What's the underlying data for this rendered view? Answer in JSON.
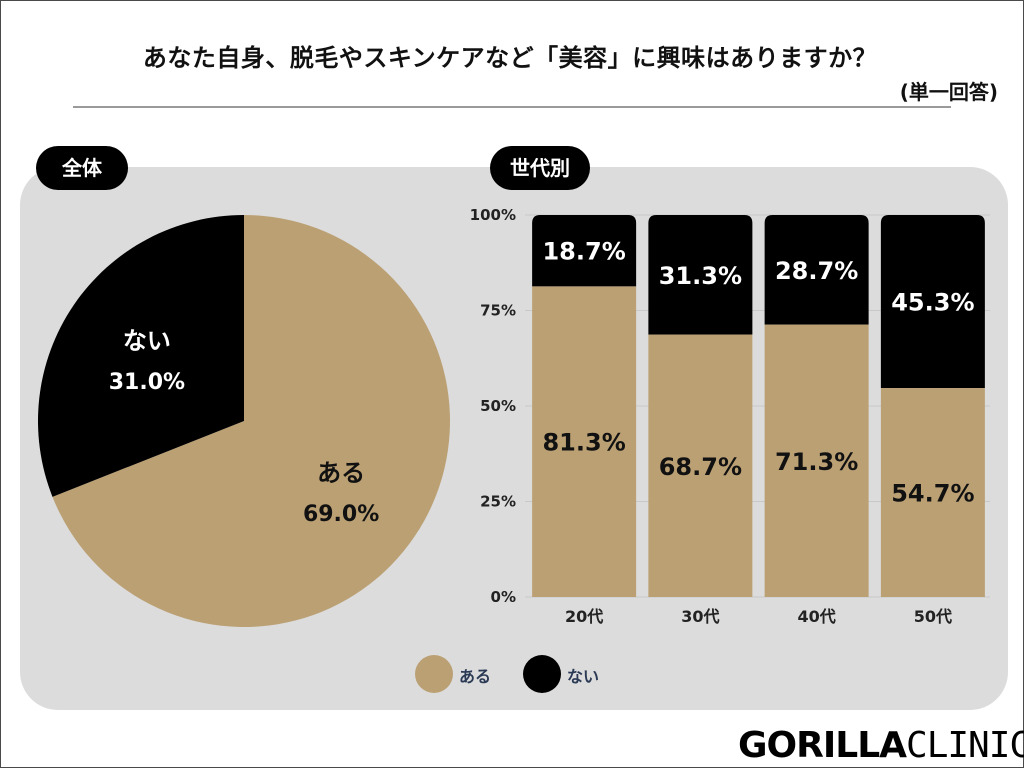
{
  "header": {
    "title": "あなた自身、脱毛やスキンケアなど「美容」に興味はありますか？",
    "subtitle": "(単一回答)"
  },
  "sections": {
    "overall_label": "全体",
    "by_age_label": "世代別"
  },
  "colors": {
    "yes": "#bba074",
    "no": "#000000",
    "panel": "#dcdcdc",
    "grid": "#c8c8c8"
  },
  "chart_data": [
    {
      "type": "pie",
      "title": "全体",
      "slices": [
        {
          "label": "ある",
          "value": 69.0,
          "display": "69.0%"
        },
        {
          "label": "ない",
          "value": 31.0,
          "display": "31.0%"
        }
      ]
    },
    {
      "type": "bar",
      "stacked": true,
      "title": "世代別",
      "categories": [
        "20代",
        "30代",
        "40代",
        "50代"
      ],
      "series": [
        {
          "name": "ある",
          "values": [
            81.3,
            68.7,
            71.3,
            54.7
          ],
          "labels": [
            "81.3%",
            "68.7%",
            "71.3%",
            "54.7%"
          ]
        },
        {
          "name": "ない",
          "values": [
            18.7,
            31.3,
            28.7,
            45.3
          ],
          "labels": [
            "18.7%",
            "31.3%",
            "28.7%",
            "45.3%"
          ]
        }
      ],
      "yticks": [
        "0%",
        "25%",
        "50%",
        "75%",
        "100%"
      ],
      "ylim": [
        0,
        100
      ]
    }
  ],
  "legend": [
    {
      "label": "ある",
      "color": "#bba074"
    },
    {
      "label": "ない",
      "color": "#000000"
    }
  ],
  "brand": {
    "part1": "GORILLA",
    "part2": "CLINIC"
  }
}
